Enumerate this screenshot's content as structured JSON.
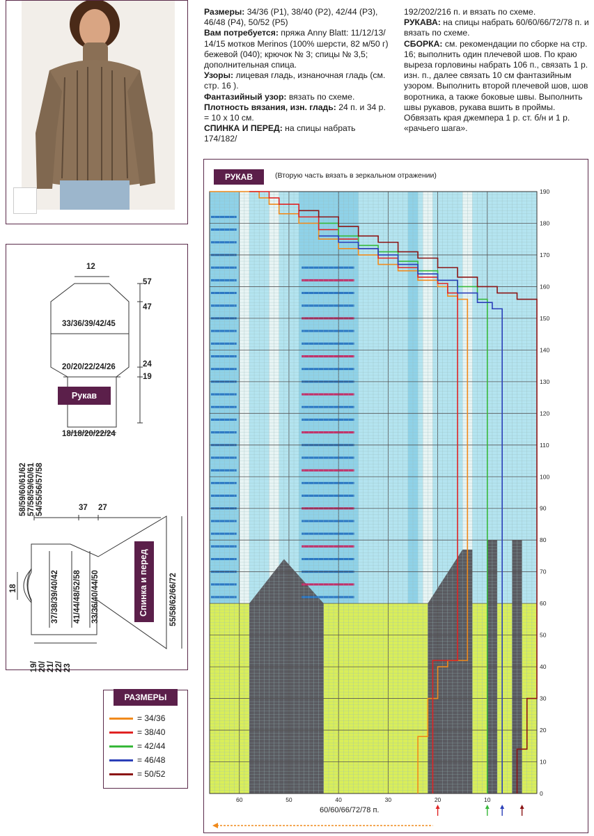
{
  "text": {
    "col1": [
      {
        "b": "Размеры:",
        "t": " 34/36 (P1), 38/40 (P2), 42/44 (P3), 46/48 (P4), 50/52 (P5)"
      },
      {
        "b": "Вам потребуется:",
        "t": " пряжа Anny Blatt: 11/12/13/ 14/15 мотков Merinos (100% шерсти, 82 м/50 г) бежевой (040); крючок № 3; спицы № 3,5; дополнительная спица."
      },
      {
        "b": "Узоры:",
        "t": " лицевая гладь, изнаночная гладь (см. стр. 16 )."
      },
      {
        "b": "Фантазийный узор:",
        "t": " вязать по схеме."
      },
      {
        "b": "Плотность вязания, изн. гладь:",
        "t": " 24 п. и 34 р. = 10 х 10 см."
      },
      {
        "b": "СПИНКА И ПЕРЕД:",
        "t": " на спицы набрать 174/182/"
      }
    ],
    "col2": [
      {
        "b": "",
        "t": "192/202/216 п. и вязать по схеме."
      },
      {
        "b": "РУКАВА:",
        "t": " на спицы набрать 60/60/66/72/78 п. и вязать по схеме."
      },
      {
        "b": "СБОРКА:",
        "t": " см. рекомендации по сборке на стр. 16; выполнить один плечевой шов. По краю выреза горловины набрать 106 п., связать 1 р. изн. п., далее связать 10 см фантазийным узором. Выполнить второй плечевой шов, шов воротника, а также боковые швы. Выполнить швы рукавов, рукава вшить в проймы. Обвязать края джемпера 1 р. ст. б/н и 1 р. «рачьего шага»."
      }
    ]
  },
  "sleeve": {
    "label": "Рукав",
    "top_width": "12",
    "mid_width": "33/36/39/42/45",
    "cuff_top": "20/20/22/24/26",
    "cuff_bottom": "18/18/20/22/24",
    "h57": "57",
    "h47": "47",
    "h24": "24",
    "h19": "19"
  },
  "body": {
    "label": "Спинка и перед",
    "v1": "58/59/60/61/62",
    "v2": "57/58/59/60/61",
    "v3": "54/55/56/57/58",
    "w37": "37",
    "w27": "27",
    "neck": "18",
    "a1": "37/38/39/40/42",
    "a2": "41/44/48/52/58",
    "a3": "33/36/40/44/50",
    "a4": "55/58/62/66/72",
    "bottom": [
      "19/",
      "20/",
      "21/",
      "22/",
      "23"
    ]
  },
  "legend": {
    "title": "РАЗМЕРЫ",
    "items": [
      {
        "label": "= 34/36",
        "color": "#f08a1c"
      },
      {
        "label": "= 38/40",
        "color": "#e02424"
      },
      {
        "label": "= 42/44",
        "color": "#38b83a"
      },
      {
        "label": "= 46/48",
        "color": "#2b3fb8"
      },
      {
        "label": "= 50/52",
        "color": "#8b1414"
      }
    ]
  },
  "chart": {
    "title": "РУКАВ",
    "note": "(Вторую часть вязать в зеркальном отражении)",
    "y_ticks": [
      "190",
      "180",
      "170",
      "160",
      "150",
      "140",
      "130",
      "120",
      "110",
      "100",
      "90",
      "80",
      "70",
      "60",
      "50",
      "40",
      "30",
      "20",
      "10",
      "0"
    ],
    "x_ticks": [
      "60",
      "50",
      "40",
      "30",
      "20",
      "10"
    ],
    "x_caption": "60/60/66/72/78 п.",
    "colors": {
      "sky": "#b4e4f0",
      "sky_dark": "#50b8dc",
      "white_col": "#e8f4f4",
      "lime": "#d9ee5a",
      "gray": "#5a5a60",
      "stripe_blue": "#1f6fc4",
      "stripe_pink": "#c81c5c",
      "header": "#4f1c43"
    }
  }
}
